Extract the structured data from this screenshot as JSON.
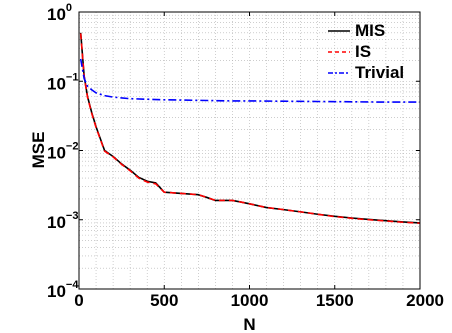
{
  "chart_data": {
    "type": "line",
    "title": "",
    "xlabel": "N",
    "ylabel": "MSE",
    "xlim": [
      0,
      2000
    ],
    "ylim": [
      0.0001,
      1
    ],
    "y_scale": "log",
    "grid": true,
    "legend_position": "top-right",
    "x_ticks": [
      0,
      500,
      1000,
      1500,
      2000
    ],
    "x_tick_labels": [
      "0",
      "500",
      "1000",
      "1500",
      "2000"
    ],
    "y_ticks": [
      0.0001,
      0.001,
      0.01,
      0.1,
      1
    ],
    "y_tick_labels": [
      {
        "base": "10",
        "exp": "−4"
      },
      {
        "base": "10",
        "exp": "−3"
      },
      {
        "base": "10",
        "exp": "−2"
      },
      {
        "base": "10",
        "exp": "−1"
      },
      {
        "base": "10",
        "exp": "0"
      }
    ],
    "series": [
      {
        "name": "MIS",
        "color": "#000000",
        "line_style": "solid",
        "x": [
          10,
          30,
          50,
          75,
          100,
          150,
          200,
          250,
          300,
          350,
          400,
          450,
          500,
          600,
          700,
          750,
          800,
          850,
          900,
          950,
          1000,
          1100,
          1200,
          1300,
          1400,
          1500,
          1600,
          1700,
          1800,
          1900,
          2000
        ],
        "y": [
          0.5,
          0.12,
          0.06,
          0.035,
          0.022,
          0.01,
          0.0082,
          0.0064,
          0.0052,
          0.0041,
          0.0036,
          0.0034,
          0.0025,
          0.0024,
          0.0023,
          0.0021,
          0.0019,
          0.0019,
          0.0019,
          0.0018,
          0.0017,
          0.0015,
          0.0014,
          0.0013,
          0.0012,
          0.00112,
          0.00106,
          0.00101,
          0.00097,
          0.00093,
          0.0009
        ]
      },
      {
        "name": "IS",
        "color": "#ff0000",
        "line_style": "dashed",
        "x": [
          10,
          30,
          50,
          75,
          100,
          150,
          200,
          250,
          300,
          350,
          400,
          450,
          500,
          600,
          700,
          750,
          800,
          850,
          900,
          950,
          1000,
          1100,
          1200,
          1300,
          1400,
          1500,
          1600,
          1700,
          1800,
          1900,
          2000
        ],
        "y": [
          0.49,
          0.118,
          0.059,
          0.034,
          0.0215,
          0.0098,
          0.0081,
          0.0063,
          0.0051,
          0.004,
          0.0035,
          0.0033,
          0.0025,
          0.0024,
          0.0023,
          0.0021,
          0.0019,
          0.0019,
          0.0019,
          0.0018,
          0.0017,
          0.0015,
          0.0014,
          0.0013,
          0.0012,
          0.00111,
          0.00105,
          0.001,
          0.00096,
          0.00092,
          0.00089
        ]
      },
      {
        "name": "Trivial",
        "color": "#0000ff",
        "line_style": "dashdot",
        "x": [
          10,
          30,
          50,
          75,
          100,
          150,
          200,
          300,
          400,
          500,
          600,
          700,
          800,
          900,
          1000,
          1200,
          1400,
          1600,
          1800,
          2000
        ],
        "y": [
          0.21,
          0.11,
          0.085,
          0.075,
          0.068,
          0.062,
          0.059,
          0.056,
          0.055,
          0.054,
          0.0535,
          0.053,
          0.0525,
          0.052,
          0.052,
          0.0515,
          0.051,
          0.0505,
          0.05,
          0.05
        ]
      }
    ]
  }
}
